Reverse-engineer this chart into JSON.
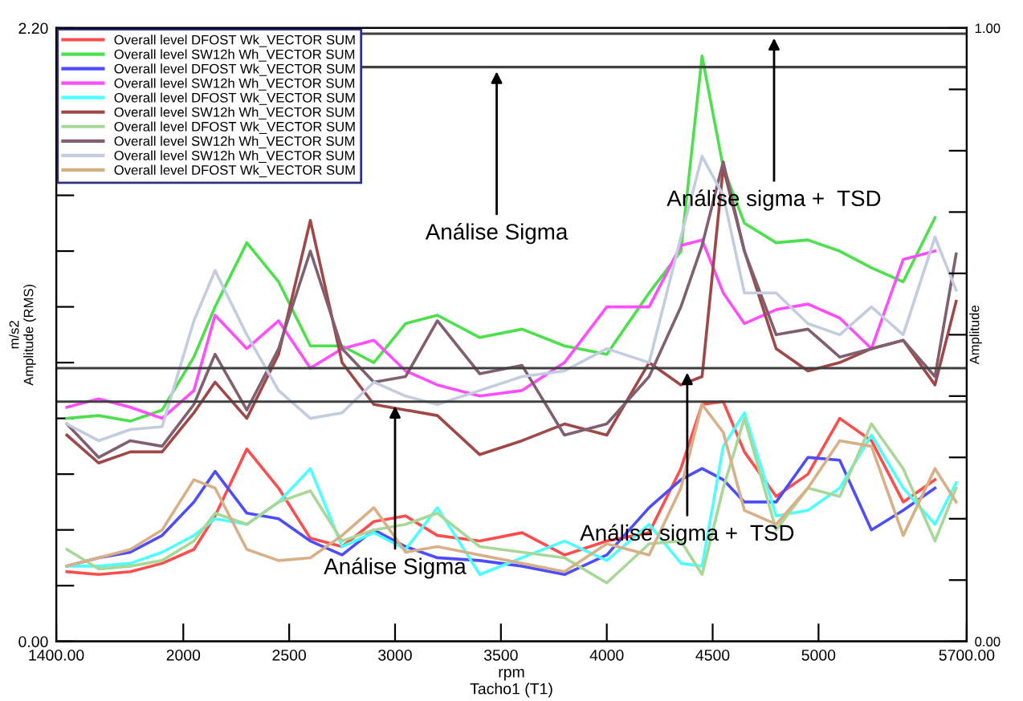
{
  "chart_data": {
    "type": "line",
    "xlabel": "rpm\nTacho1 (T1)",
    "ylabel": "m/s2\nAmplitude (RMS)",
    "y2label": "Amplitude",
    "x": [
      1450,
      1600,
      1750,
      1900,
      2050,
      2150,
      2300,
      2450,
      2600,
      2750,
      2900,
      3050,
      3200,
      3400,
      3600,
      3800,
      4000,
      4200,
      4350,
      4450,
      4550,
      4650,
      4800,
      4950,
      5100,
      5250,
      5400,
      5550,
      5650
    ],
    "xlim": [
      1400,
      5700
    ],
    "xticks": [
      {
        "value": 1400,
        "label": "1400.00"
      },
      2000,
      2500,
      3000,
      3500,
      4000,
      4500,
      5000,
      {
        "value": 5700,
        "label": "5700.00"
      }
    ],
    "ylim": [
      0,
      2.2
    ],
    "yticks": [
      {
        "value": 0,
        "label": "0.00"
      },
      {
        "value": 0.2,
        "label": null
      },
      {
        "value": 0.4,
        "label": null
      },
      {
        "value": 0.6,
        "label": null
      },
      {
        "value": 0.8,
        "label": null
      },
      {
        "value": 1.0,
        "label": null
      },
      {
        "value": 1.2,
        "label": null
      },
      {
        "value": 1.4,
        "label": null
      },
      {
        "value": 1.6,
        "label": null
      },
      {
        "value": 1.8,
        "label": null
      },
      {
        "value": 2.0,
        "label": null
      },
      {
        "value": 2.2,
        "label": "2.20"
      }
    ],
    "y2lim": [
      0,
      1
    ],
    "y2ticks": [
      {
        "value": 0,
        "label": "0.00"
      },
      {
        "value": 0.1,
        "label": null
      },
      {
        "value": 0.2,
        "label": null
      },
      {
        "value": 0.3,
        "label": null
      },
      {
        "value": 0.4,
        "label": null
      },
      {
        "value": 0.5,
        "label": null
      },
      {
        "value": 0.6,
        "label": null
      },
      {
        "value": 0.7,
        "label": null
      },
      {
        "value": 0.8,
        "label": null
      },
      {
        "value": 0.9,
        "label": null
      },
      {
        "value": 1,
        "label": "1.00"
      }
    ],
    "grid": false,
    "legend": "top left",
    "marker": "none",
    "line_style": "solid",
    "series": [
      {
        "name": "Overall level DFOST Wk_VECTOR SUM",
        "color": "#ff4d4d",
        "values": [
          0.25,
          0.24,
          0.25,
          0.28,
          0.33,
          0.45,
          0.69,
          0.55,
          0.37,
          0.34,
          0.43,
          0.45,
          0.38,
          0.36,
          0.39,
          0.31,
          0.36,
          0.39,
          0.62,
          0.85,
          0.86,
          0.68,
          0.52,
          0.6,
          0.8,
          0.72,
          0.5,
          0.58,
          null
        ]
      },
      {
        "name": "Overall level SW12h Wh_VECTOR SUM",
        "color": "#4ce04c",
        "values": [
          0.8,
          0.81,
          0.79,
          0.83,
          1.02,
          1.2,
          1.43,
          1.29,
          1.06,
          1.06,
          1.0,
          1.14,
          1.17,
          1.09,
          1.12,
          1.06,
          1.03,
          1.25,
          1.4,
          2.1,
          1.7,
          1.5,
          1.43,
          1.44,
          1.4,
          1.34,
          1.29,
          1.52,
          null
        ]
      },
      {
        "name": "Overall level DFOST Wk_VECTOR SUM",
        "color": "#4d4dff",
        "values": [
          0.27,
          0.3,
          0.32,
          0.38,
          0.5,
          0.61,
          0.46,
          0.44,
          0.36,
          0.31,
          0.4,
          0.34,
          0.3,
          0.29,
          0.27,
          0.24,
          0.31,
          0.48,
          0.58,
          0.62,
          0.58,
          0.5,
          0.5,
          0.66,
          0.65,
          0.4,
          0.47,
          0.55,
          null
        ]
      },
      {
        "name": "Overall level SW12h Wh_VECTOR SUM",
        "color": "#ff4dff",
        "values": [
          0.84,
          0.87,
          0.84,
          0.8,
          0.9,
          1.17,
          1.05,
          1.15,
          0.98,
          1.05,
          1.08,
          0.97,
          0.92,
          0.88,
          0.9,
          1.0,
          1.2,
          1.2,
          1.42,
          1.44,
          1.25,
          1.14,
          1.19,
          1.21,
          1.16,
          1.05,
          1.37,
          1.4,
          null
        ]
      },
      {
        "name": "Overall level DFOST Wk_VECTOR SUM",
        "color": "#4dffff",
        "values": [
          0.27,
          0.27,
          0.28,
          0.32,
          0.38,
          0.44,
          0.42,
          0.5,
          0.62,
          0.34,
          0.39,
          0.33,
          0.48,
          0.24,
          0.3,
          0.36,
          0.29,
          0.42,
          0.28,
          0.27,
          0.7,
          0.82,
          0.45,
          0.47,
          0.55,
          0.74,
          0.55,
          0.42,
          0.57
        ]
      },
      {
        "name": "Overall level SW12h Wh_VECTOR SUM",
        "color": "#a04848",
        "values": [
          0.74,
          0.64,
          0.68,
          0.68,
          0.82,
          0.93,
          0.8,
          1.03,
          1.51,
          1.0,
          0.85,
          0.83,
          0.81,
          0.67,
          0.72,
          0.78,
          0.74,
          1.0,
          0.92,
          0.95,
          1.7,
          1.4,
          1.05,
          0.97,
          1.0,
          1.05,
          1.08,
          0.92,
          1.22
        ]
      },
      {
        "name": "Overall level DFOST Wk_VECTOR SUM",
        "color": "#a8d898",
        "values": [
          0.33,
          0.26,
          0.27,
          0.29,
          0.36,
          0.46,
          0.42,
          0.5,
          0.54,
          0.36,
          0.4,
          0.42,
          0.46,
          0.34,
          0.32,
          0.3,
          0.21,
          0.35,
          0.36,
          0.24,
          0.55,
          0.8,
          0.4,
          0.55,
          0.52,
          0.78,
          0.62,
          0.36,
          0.55
        ]
      },
      {
        "name": "Overall level SW12h Wh_VECTOR SUM",
        "color": "#806070",
        "values": [
          0.78,
          0.66,
          0.72,
          0.7,
          0.85,
          1.03,
          0.83,
          1.05,
          1.4,
          1.05,
          0.93,
          0.95,
          1.15,
          0.96,
          0.99,
          0.74,
          0.78,
          0.95,
          1.2,
          1.42,
          1.72,
          1.4,
          1.1,
          1.12,
          1.02,
          1.05,
          1.08,
          0.95,
          1.39
        ]
      },
      {
        "name": "Overall level SW12h Wh_VECTOR SUM",
        "color": "#c4cce0",
        "values": [
          0.78,
          0.72,
          0.76,
          0.77,
          1.15,
          1.33,
          1.1,
          0.9,
          0.8,
          0.82,
          0.93,
          0.88,
          0.85,
          0.9,
          0.95,
          0.97,
          1.05,
          1.0,
          1.45,
          1.74,
          1.6,
          1.25,
          1.25,
          1.14,
          1.1,
          1.2,
          1.1,
          1.45,
          1.26
        ]
      },
      {
        "name": "Overall level DFOST Wk_VECTOR SUM",
        "color": "#d8b088",
        "values": [
          0.27,
          0.3,
          0.33,
          0.4,
          0.58,
          0.55,
          0.33,
          0.29,
          0.3,
          0.38,
          0.48,
          0.32,
          0.34,
          0.31,
          0.28,
          0.25,
          0.35,
          0.31,
          0.55,
          0.85,
          0.75,
          0.47,
          0.42,
          0.55,
          0.72,
          0.7,
          0.38,
          0.62,
          0.5
        ]
      }
    ],
    "ref_lines": [
      {
        "axis": "y",
        "value": 2.18,
        "color": "#404040",
        "line_style": "solid"
      },
      {
        "axis": "y",
        "value": 2.06,
        "color": "#404040",
        "line_style": "solid"
      },
      {
        "axis": "y",
        "value": 0.98,
        "color": "#404040",
        "line_style": "solid"
      },
      {
        "axis": "y",
        "value": 0.86,
        "color": "#404040",
        "line_style": "solid"
      }
    ],
    "annotations": [
      {
        "text": "Análise Sigma",
        "x": 3480,
        "y": 2.06
      },
      {
        "text": "Análise sigma +  TSD",
        "x": 4790,
        "y": 2.18
      },
      {
        "text": "Análise Sigma",
        "x": 3000,
        "y": 0.86
      },
      {
        "text": "Análise sigma +  TSD",
        "x": 4380,
        "y": 0.98
      }
    ]
  }
}
